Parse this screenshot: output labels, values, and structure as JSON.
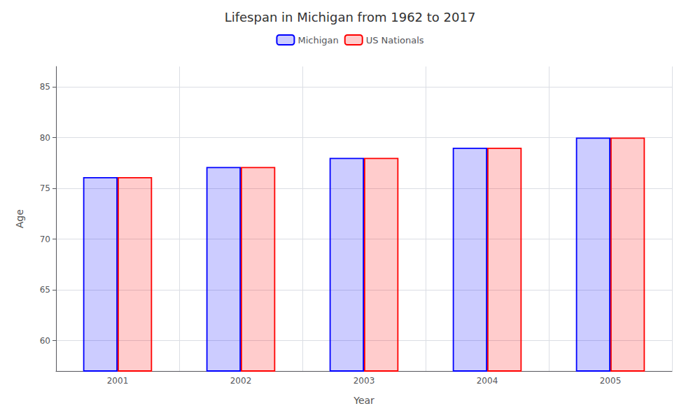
{
  "chart_data": {
    "type": "bar",
    "title": "Lifespan in Michigan from 1962 to 2017",
    "xlabel": "Year",
    "ylabel": "Age",
    "categories": [
      2001,
      2002,
      2003,
      2004,
      2005
    ],
    "series": [
      {
        "name": "Michigan",
        "color": "#0000ff",
        "values": [
          76.1,
          77.1,
          78.0,
          79.0,
          80.0
        ]
      },
      {
        "name": "US Nationals",
        "color": "#ff0000",
        "values": [
          76.1,
          77.1,
          78.0,
          79.0,
          80.0
        ]
      }
    ],
    "ylim": [
      57,
      87
    ],
    "yticks": [
      60,
      65,
      70,
      75,
      80,
      85
    ],
    "grid": true,
    "legend": "top"
  }
}
